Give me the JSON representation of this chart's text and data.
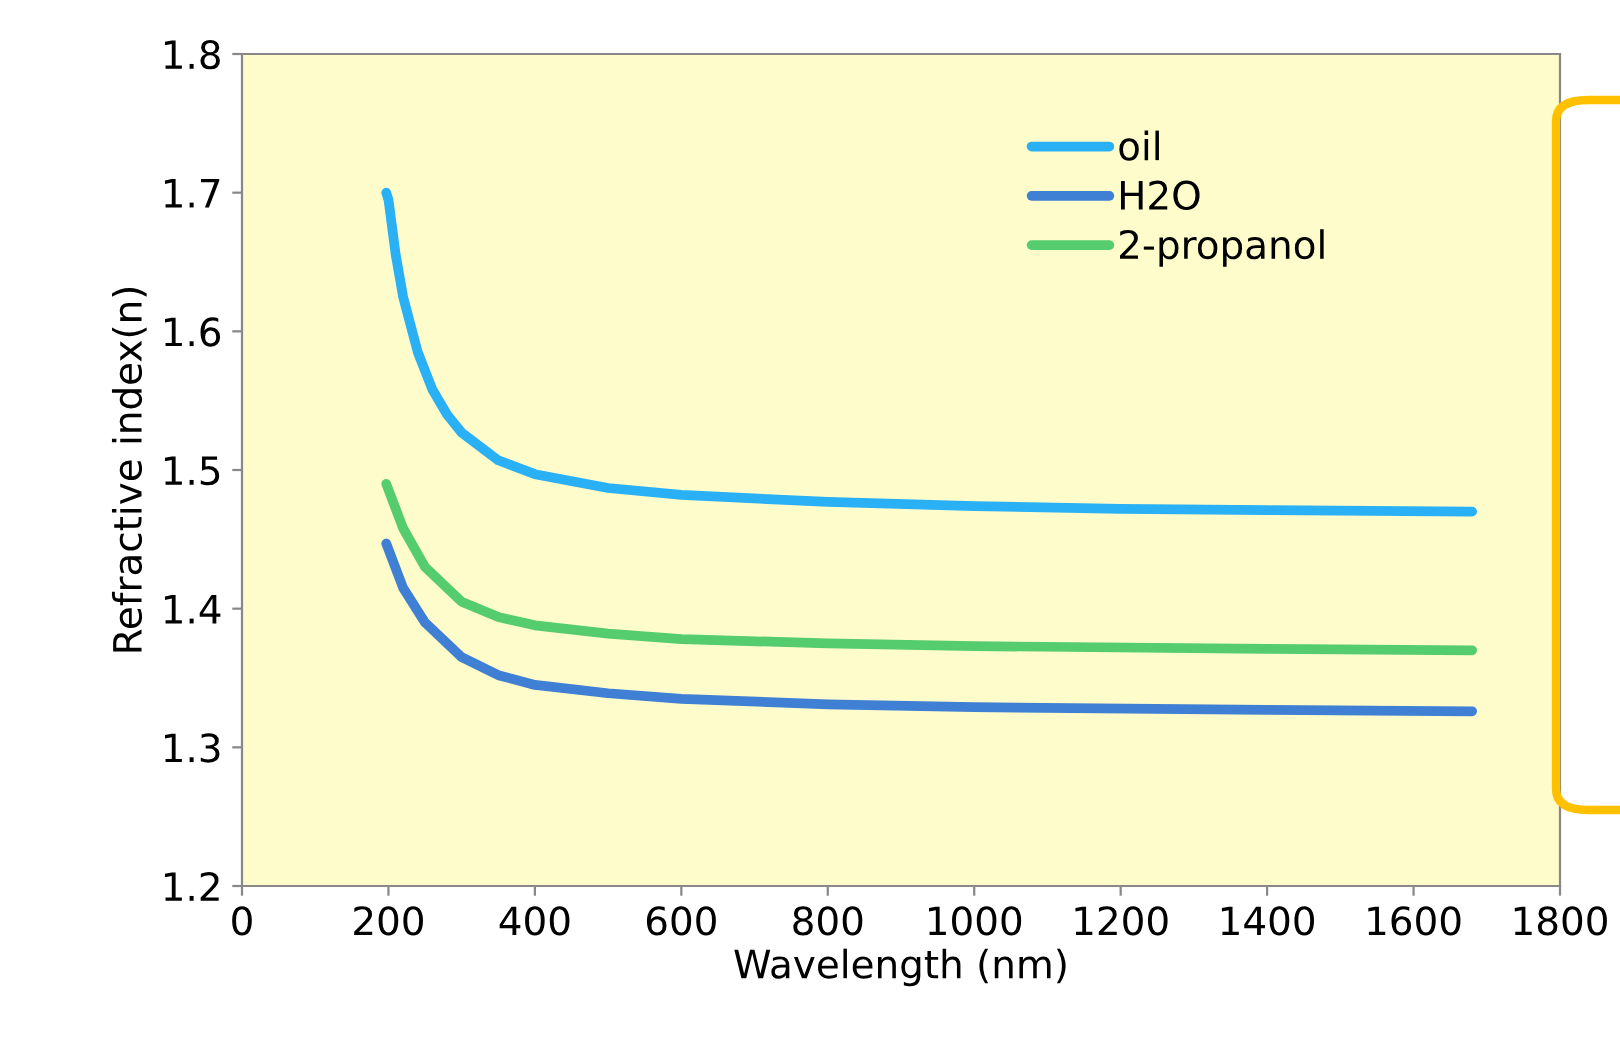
{
  "chart_data": {
    "type": "line",
    "xlabel": "Wavelength (nm)",
    "ylabel": "Refractive index(n)",
    "xlim": [
      0,
      1800
    ],
    "xticks": [
      0,
      200,
      400,
      600,
      800,
      1000,
      1200,
      1400,
      1600,
      1800
    ],
    "ylim": [
      1.2,
      1.8
    ],
    "yticks": [
      1.2,
      1.3,
      1.4,
      1.5,
      1.6,
      1.7,
      1.8
    ],
    "grid": false,
    "legend": "top right",
    "line_style": "solid",
    "marker": "none",
    "series": [
      {
        "name": "oil",
        "color": "#2ab0f5",
        "x": [
          197,
          200,
          210,
          220,
          240,
          260,
          280,
          300,
          350,
          400,
          500,
          600,
          800,
          1000,
          1200,
          1400,
          1680
        ],
        "values": [
          1.7,
          1.695,
          1.655,
          1.625,
          1.585,
          1.558,
          1.54,
          1.527,
          1.507,
          1.497,
          1.487,
          1.482,
          1.477,
          1.474,
          1.472,
          1.471,
          1.47
        ]
      },
      {
        "name": "H2O",
        "color": "#3f7fd4",
        "x": [
          197,
          220,
          250,
          300,
          350,
          400,
          500,
          600,
          800,
          1000,
          1400,
          1680
        ],
        "values": [
          1.447,
          1.415,
          1.39,
          1.365,
          1.352,
          1.345,
          1.339,
          1.335,
          1.331,
          1.329,
          1.327,
          1.326
        ]
      },
      {
        "name": "2-propanol",
        "color": "#55cc6e",
        "x": [
          197,
          220,
          250,
          300,
          350,
          400,
          500,
          600,
          800,
          1000,
          1400,
          1680
        ],
        "values": [
          1.49,
          1.458,
          1.43,
          1.405,
          1.394,
          1.388,
          1.382,
          1.378,
          1.375,
          1.373,
          1.371,
          1.37
        ]
      }
    ]
  }
}
